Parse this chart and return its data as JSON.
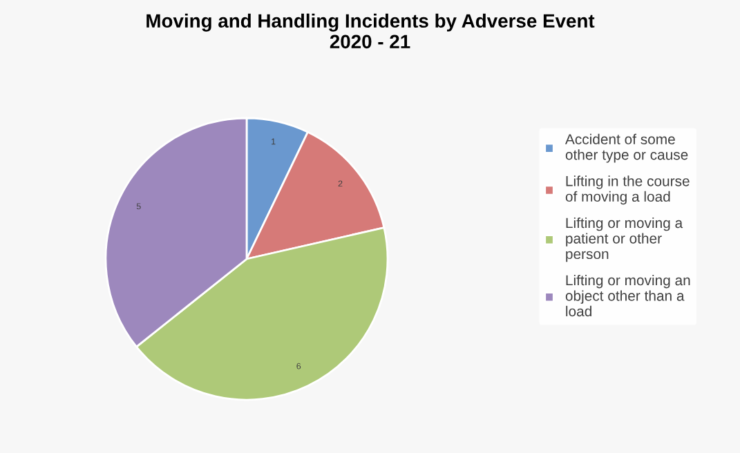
{
  "chart_data": {
    "type": "pie",
    "title": "Moving and Handling Incidents by Adverse Event\n2020 - 21",
    "categories": [
      "Accident of some other type or cause",
      "Lifting in the course of moving a load",
      "Lifting or moving a patient or other person",
      "Lifting or moving an object other than a load"
    ],
    "values": [
      1,
      2,
      6,
      5
    ],
    "colors": [
      "#6a98cf",
      "#d67a78",
      "#aec978",
      "#9d88bd"
    ],
    "data_labels": true,
    "legend": "right"
  }
}
